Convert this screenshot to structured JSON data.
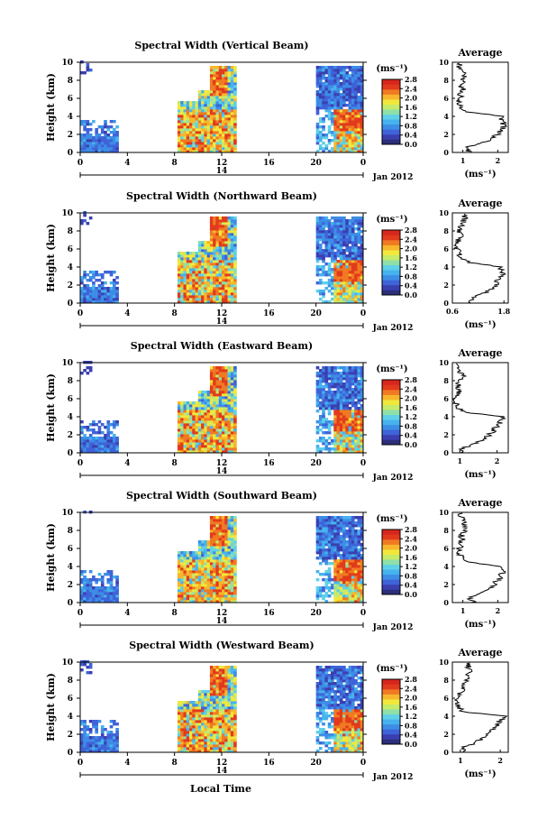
{
  "figure": {
    "xlabel": "Local Time",
    "date_label": "Jan 2012",
    "day_label": "14",
    "ylabel": "Height (km)",
    "colorbar_unit": "(ms⁻¹)",
    "avg_title": "Average",
    "avg_xlabel": "(ms⁻¹)",
    "colormap": [
      "#2b2f7a",
      "#3a3fb0",
      "#3f63d8",
      "#3d8de6",
      "#46b3ee",
      "#5fd0e8",
      "#8fe0a8",
      "#c6ea6a",
      "#f2e83c",
      "#f7b62c",
      "#f07a22",
      "#e23a1c",
      "#d7261c"
    ],
    "x_ticks": [
      "0",
      "4",
      "8",
      "12",
      "16",
      "20",
      "0"
    ],
    "y_ticks": [
      "0",
      "2",
      "4",
      "6",
      "8",
      "10"
    ]
  },
  "chart_data": [
    {
      "type": "heatmap",
      "title": "Spectral Width (Vertical Beam)",
      "xlim": [
        0,
        24
      ],
      "ylim": [
        0,
        10
      ],
      "colorbar": {
        "ticks": [
          "0.0",
          "0.4",
          "0.8",
          "1.2",
          "1.6",
          "2.0",
          "2.4",
          "2.8"
        ],
        "range": [
          0,
          2.8
        ]
      },
      "avg_profile": {
        "xlim": [
          0.7,
          2.3
        ],
        "xticks": [
          "1",
          "2"
        ],
        "height": [
          0,
          0.5,
          1,
          1.5,
          2,
          2.5,
          3,
          3.5,
          4,
          4.5,
          5,
          5.5,
          6,
          6.5,
          7,
          7.5,
          8,
          8.5,
          9,
          9.5
        ],
        "value": [
          1.2,
          1.1,
          1.5,
          1.8,
          2.0,
          2.1,
          2.2,
          2.1,
          2.1,
          1.1,
          0.95,
          0.9,
          0.9,
          0.95,
          1.0,
          0.95,
          1.0,
          1.05,
          0.95,
          0.9
        ]
      }
    },
    {
      "type": "heatmap",
      "title": "Spectral Width (Northward Beam)",
      "xlim": [
        0,
        24
      ],
      "ylim": [
        0,
        10
      ],
      "colorbar": {
        "ticks": [
          "0.0",
          "0.4",
          "0.8",
          "1.2",
          "1.6",
          "2.0",
          "2.4",
          "2.8"
        ],
        "range": [
          0,
          2.8
        ]
      },
      "avg_profile": {
        "xlim": [
          0.6,
          1.9
        ],
        "xticks": [
          "0.6",
          "1.8"
        ],
        "height": [
          0,
          0.5,
          1,
          1.5,
          2,
          2.5,
          3,
          3.5,
          4,
          4.5,
          5,
          5.5,
          6,
          6.5,
          7,
          7.5,
          8,
          8.5,
          9,
          9.5
        ],
        "value": [
          1.0,
          1.05,
          1.3,
          1.5,
          1.6,
          1.65,
          1.75,
          1.8,
          1.7,
          1.0,
          0.8,
          0.75,
          0.7,
          0.7,
          0.75,
          0.8,
          0.75,
          0.8,
          0.85,
          0.9
        ]
      }
    },
    {
      "type": "heatmap",
      "title": "Spectral Width (Eastward Beam)",
      "xlim": [
        0,
        24
      ],
      "ylim": [
        0,
        10
      ],
      "colorbar": {
        "ticks": [
          "0.0",
          "0.4",
          "0.8",
          "1.2",
          "1.6",
          "2.0",
          "2.4",
          "2.8"
        ],
        "range": [
          0,
          2.8
        ]
      },
      "avg_profile": {
        "xlim": [
          0.8,
          2.3
        ],
        "xticks": [
          "1",
          "2"
        ],
        "height": [
          0,
          0.5,
          1,
          1.5,
          2,
          2.5,
          3,
          3.5,
          4,
          4.5,
          5,
          5.5,
          6,
          6.5,
          7,
          7.5,
          8,
          8.5,
          9,
          9.5
        ],
        "value": [
          1.1,
          1.05,
          1.4,
          1.65,
          1.8,
          1.9,
          2.0,
          2.1,
          2.2,
          1.1,
          0.95,
          0.9,
          0.9,
          0.95,
          1.0,
          0.95,
          1.0,
          1.1,
          1.0,
          0.95
        ]
      }
    },
    {
      "type": "heatmap",
      "title": "Spectral Width (Southward Beam)",
      "xlim": [
        0,
        24
      ],
      "ylim": [
        0,
        10
      ],
      "colorbar": {
        "ticks": [
          "0.0",
          "0.4",
          "0.8",
          "1.2",
          "1.6",
          "2.0",
          "2.4",
          "2.8"
        ],
        "range": [
          0,
          2.8
        ]
      },
      "avg_profile": {
        "xlim": [
          0.7,
          2.3
        ],
        "xticks": [
          "1",
          "2"
        ],
        "height": [
          0,
          0.5,
          1,
          1.5,
          2,
          2.5,
          3,
          3.5,
          4,
          4.5,
          5,
          5.5,
          6,
          6.5,
          7,
          7.5,
          8,
          8.5,
          9,
          9.5
        ],
        "value": [
          1.3,
          1.2,
          1.5,
          1.75,
          1.9,
          2.0,
          2.1,
          2.15,
          2.1,
          1.1,
          0.95,
          0.9,
          0.9,
          0.95,
          1.0,
          0.95,
          1.05,
          1.1,
          1.0,
          0.95
        ]
      }
    },
    {
      "type": "heatmap",
      "title": "Spectral Width (Westward Beam)",
      "xlim": [
        0,
        24
      ],
      "ylim": [
        0,
        10
      ],
      "colorbar": {
        "ticks": [
          "0.0",
          "0.4",
          "0.8",
          "1.2",
          "1.6",
          "2.0",
          "2.4",
          "2.8"
        ],
        "range": [
          0,
          2.8
        ]
      },
      "avg_profile": {
        "xlim": [
          0.8,
          2.2
        ],
        "xticks": [
          "1",
          "2"
        ],
        "height": [
          0,
          0.5,
          1,
          1.5,
          2,
          2.5,
          3,
          3.5,
          4,
          4.5,
          5,
          5.5,
          6,
          6.5,
          7,
          7.5,
          8,
          8.5,
          9,
          9.5
        ],
        "value": [
          1.1,
          1.05,
          1.35,
          1.55,
          1.7,
          1.8,
          1.9,
          2.0,
          2.1,
          1.05,
          0.95,
          0.9,
          0.95,
          1.0,
          1.05,
          1.1,
          1.15,
          1.2,
          1.25,
          1.2
        ]
      }
    }
  ]
}
